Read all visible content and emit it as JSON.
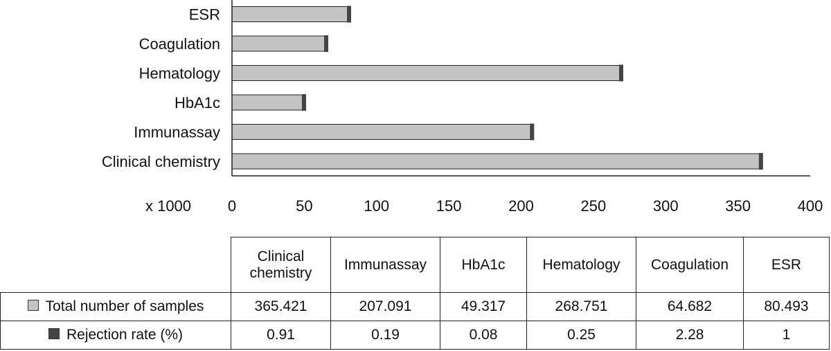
{
  "chart_data": {
    "type": "bar",
    "orientation": "horizontal",
    "axis_prefix": "x 1000",
    "categories": [
      "Clinical chemistry",
      "Immunassay",
      "HbA1c",
      "Hematology",
      "Coagulation",
      "ESR"
    ],
    "series": [
      {
        "name": "Total number of samples",
        "values": [
          365.421,
          207.091,
          49.317,
          268.751,
          64.682,
          80.493
        ],
        "color": "#c4c4c4"
      },
      {
        "name": "Rejection rate (%)",
        "values": [
          0.91,
          0.19,
          0.08,
          0.25,
          2.28,
          1
        ],
        "color": "#444444"
      }
    ],
    "xlim": [
      0,
      400
    ],
    "x_ticks": [
      0,
      50,
      100,
      150,
      200,
      250,
      300,
      350,
      400
    ],
    "grid": false,
    "legend": "table-below"
  },
  "table": {
    "headers": [
      "Clinical\nchemistry",
      "Immunassay",
      "HbA1c",
      "Hematology",
      "Coagulation",
      "ESR"
    ],
    "rows": [
      {
        "label": "Total number of samples",
        "swatch": "light",
        "cells": [
          "365.421",
          "207.091",
          "49.317",
          "268.751",
          "64.682",
          "80.493"
        ]
      },
      {
        "label": "Rejection rate (%)",
        "swatch": "dark",
        "cells": [
          "0.91",
          "0.19",
          "0.08",
          "0.25",
          "2.28",
          "1"
        ]
      }
    ]
  }
}
